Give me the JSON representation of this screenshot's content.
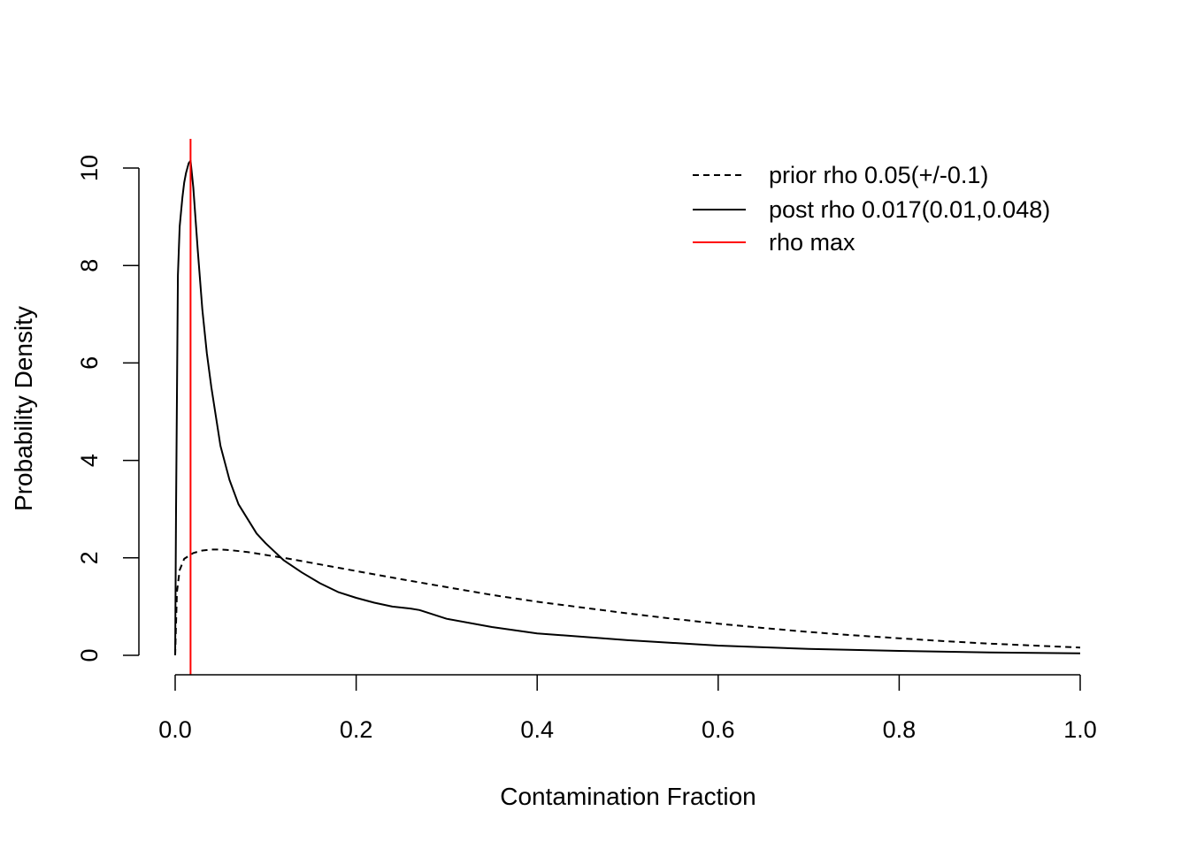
{
  "chart_data": {
    "type": "line",
    "title": "",
    "xlabel": "Contamination Fraction",
    "ylabel": "Probability Density",
    "xlim": [
      0,
      1
    ],
    "ylim": [
      0,
      10
    ],
    "xticks": [
      "0.0",
      "0.2",
      "0.4",
      "0.6",
      "0.8",
      "1.0"
    ],
    "yticks": [
      "0",
      "2",
      "4",
      "6",
      "8",
      "10"
    ],
    "grid": false,
    "legend_position": "top-right",
    "series": [
      {
        "name": "prior rho 0.05(+/-0.1)",
        "style": "dashed",
        "color": "#000000",
        "x": [
          0.0,
          0.002,
          0.005,
          0.01,
          0.02,
          0.03,
          0.04,
          0.05,
          0.06,
          0.08,
          0.1,
          0.12,
          0.15,
          0.2,
          0.25,
          0.3,
          0.35,
          0.4,
          0.45,
          0.5,
          0.55,
          0.6,
          0.65,
          0.7,
          0.75,
          0.8,
          0.85,
          0.9,
          0.95,
          1.0
        ],
        "y": [
          0.0,
          1.3,
          1.75,
          1.98,
          2.1,
          2.15,
          2.17,
          2.17,
          2.16,
          2.12,
          2.06,
          2.0,
          1.9,
          1.73,
          1.56,
          1.4,
          1.24,
          1.1,
          0.98,
          0.86,
          0.75,
          0.65,
          0.56,
          0.48,
          0.41,
          0.35,
          0.29,
          0.24,
          0.2,
          0.16
        ]
      },
      {
        "name": "post rho 0.017(0.01,0.048)",
        "style": "solid",
        "color": "#000000",
        "x": [
          0.0,
          0.001,
          0.003,
          0.005,
          0.008,
          0.01,
          0.012,
          0.015,
          0.017,
          0.02,
          0.025,
          0.03,
          0.035,
          0.04,
          0.05,
          0.06,
          0.07,
          0.08,
          0.09,
          0.1,
          0.12,
          0.14,
          0.16,
          0.18,
          0.2,
          0.22,
          0.24,
          0.26,
          0.27,
          0.3,
          0.35,
          0.4,
          0.5,
          0.6,
          0.7,
          0.8,
          0.9,
          1.0
        ],
        "y": [
          0.0,
          3.0,
          7.8,
          8.8,
          9.4,
          9.7,
          9.9,
          10.1,
          10.15,
          9.6,
          8.3,
          7.1,
          6.2,
          5.5,
          4.3,
          3.6,
          3.1,
          2.8,
          2.5,
          2.3,
          1.95,
          1.7,
          1.48,
          1.3,
          1.18,
          1.08,
          1.0,
          0.96,
          0.93,
          0.75,
          0.58,
          0.45,
          0.31,
          0.2,
          0.13,
          0.09,
          0.06,
          0.04
        ]
      },
      {
        "name": "rho max",
        "style": "solid",
        "color": "#ff0000",
        "kind": "vline",
        "x_value": 0.017
      }
    ]
  }
}
